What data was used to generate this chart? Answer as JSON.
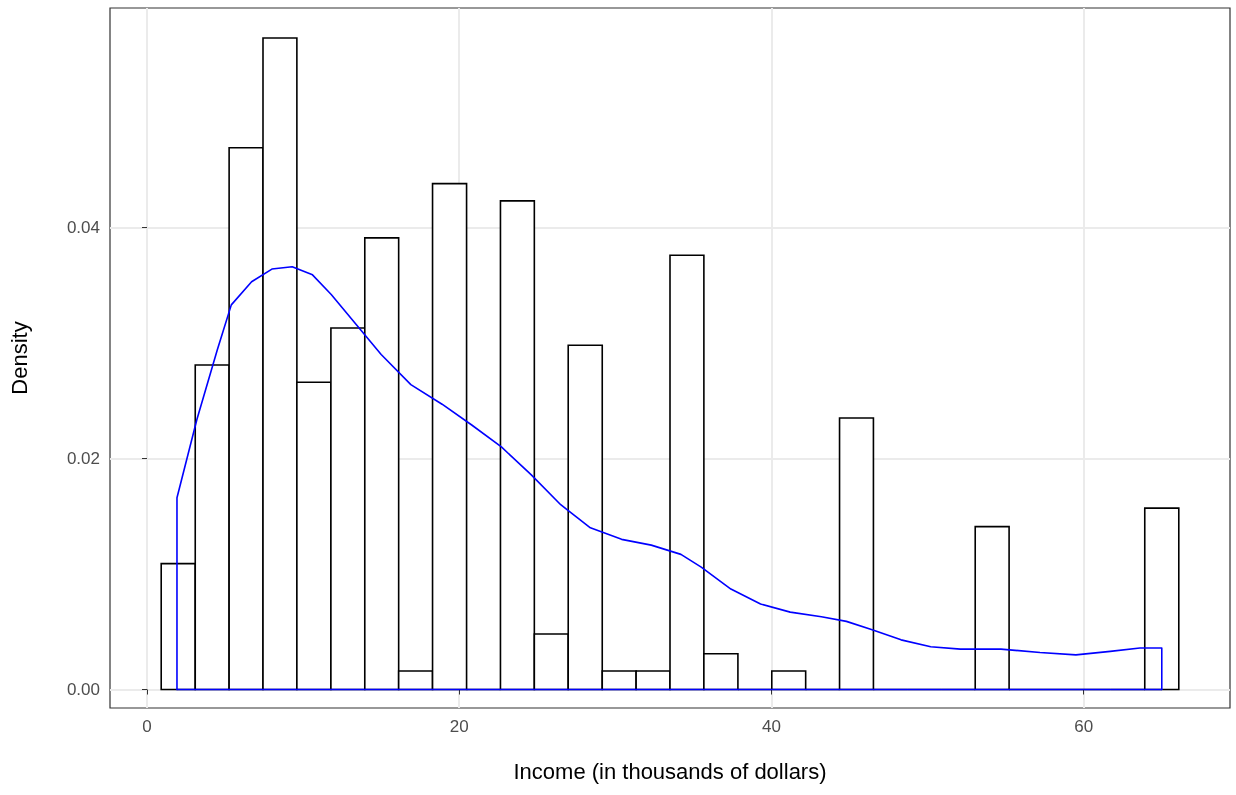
{
  "chart_data": {
    "type": "histogram",
    "xlabel": "Income (in thousands of dollars)",
    "ylabel": "Density",
    "bins": [
      0.91,
      3.09,
      5.26,
      7.43,
      9.6,
      11.78,
      13.95,
      16.12,
      18.29,
      20.47,
      22.64,
      24.81,
      26.98,
      29.16,
      31.33,
      33.5,
      35.67,
      37.85,
      40.02,
      42.19,
      44.36,
      46.53,
      48.71,
      50.88,
      53.05,
      55.22,
      57.4,
      59.57,
      61.74,
      63.91,
      66.09
    ],
    "series": [
      {
        "color": "#000000",
        "values": [
          0.0109,
          0.0281,
          0.0469,
          0.0564,
          0.0266,
          0.0313,
          0.0391,
          0.0016,
          0.0438,
          0,
          0.0423,
          0.0048,
          0.0298,
          0.0016,
          0.0016,
          0.0376,
          0.0031,
          0,
          0.0016,
          0,
          0.0235,
          0,
          0,
          0,
          0.0141,
          0,
          0,
          0,
          0,
          0.0157
        ]
      },
      {
        "type": "line",
        "color": "#0000ff",
        "x": [
          1.92,
          1.92,
          3.2,
          4.5,
          5.4,
          6.7,
          8.0,
          9.3,
          10.6,
          11.8,
          13.4,
          15.0,
          16.9,
          18.9,
          20.8,
          22.7,
          24.6,
          26.5,
          28.4,
          30.4,
          32.3,
          34.2,
          35.5,
          37.4,
          39.3,
          41.2,
          43.2,
          44.8,
          46.4,
          48.3,
          50.2,
          52.1,
          54.7,
          57.2,
          59.5,
          61.7,
          63.6,
          65.0,
          65.0
        ],
        "values": [
          0,
          0.0166,
          0.0234,
          0.0294,
          0.0333,
          0.0353,
          0.0364,
          0.0366,
          0.0359,
          0.0342,
          0.0316,
          0.029,
          0.0264,
          0.0247,
          0.0229,
          0.021,
          0.0186,
          0.016,
          0.014,
          0.013,
          0.0125,
          0.0117,
          0.0106,
          0.0087,
          0.0074,
          0.0067,
          0.0063,
          0.0059,
          0.0052,
          0.0043,
          0.0037,
          0.0035,
          0.0035,
          0.0032,
          0.003,
          0.0033,
          0.0036,
          0.0036,
          0
        ]
      },
      {
        "type": "line",
        "color": "#0000ff",
        "x": [
          1.92,
          65.0
        ],
        "values": [
          0,
          0
        ]
      }
    ],
    "xlim": [
      -2.37,
      69.37
    ],
    "xticks": [
      0,
      20,
      40,
      60
    ],
    "ylim": [
      -0.0016,
      0.059
    ],
    "yticks": [
      {
        "value": 0,
        "label": "0.00"
      },
      {
        "value": 0.02,
        "label": "0.02"
      },
      {
        "value": 0.04,
        "label": "0.04"
      }
    ],
    "grid": true
  }
}
